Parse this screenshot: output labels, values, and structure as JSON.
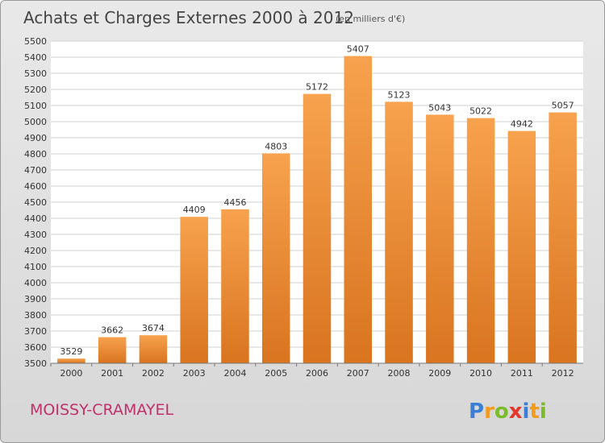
{
  "chart_data": {
    "type": "bar",
    "title": "Achats et Charges Externes 2000 à 2012",
    "subtitle": "(en milliers d'€)",
    "categories": [
      "2000",
      "2001",
      "2002",
      "2003",
      "2004",
      "2005",
      "2006",
      "2007",
      "2008",
      "2009",
      "2010",
      "2011",
      "2012"
    ],
    "values": [
      3529,
      3662,
      3674,
      4409,
      4456,
      4803,
      5172,
      5407,
      5123,
      5043,
      5022,
      4942,
      5057
    ],
    "ylim": [
      3500,
      5500
    ],
    "ytick_step": 100,
    "grid": true,
    "bar_color_top": "#f7a24e",
    "bar_color_bottom": "#d9741f",
    "legend": "none"
  },
  "location": "MOISSY-CRAMAYEL",
  "location_color": "#c0306a",
  "brand": {
    "letters": [
      "P",
      "r",
      "o",
      "x",
      "i",
      "t",
      "i"
    ],
    "colors": [
      "#3a7fd5",
      "#f29b1c",
      "#7bbb2c",
      "#e2372a",
      "#3a7fd5",
      "#f29b1c",
      "#7bbb2c"
    ]
  }
}
